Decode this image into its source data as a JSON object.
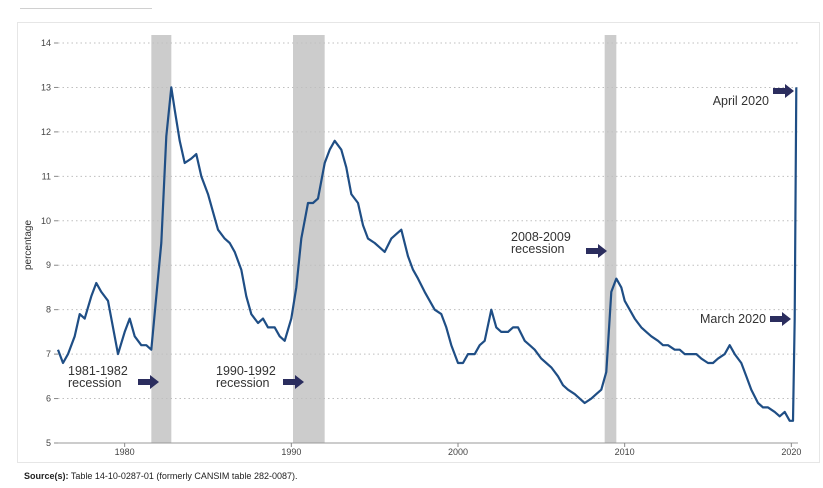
{
  "source": {
    "label": "Source(s):",
    "text": "Table 14-10-0287-01 (formerly CANSIM table 282-0087)."
  },
  "colors": {
    "line": "#1f4e85",
    "recession_band": "#cccccc",
    "arrow": "#2b2d5e",
    "grid": "#bfbfbf"
  },
  "chart_data": {
    "type": "line",
    "title": "",
    "xlabel": "",
    "ylabel": "percentage",
    "xlim": [
      1976,
      2020.4
    ],
    "ylim": [
      5,
      14
    ],
    "x_ticks": [
      1980,
      1990,
      2000,
      2010,
      2020
    ],
    "y_ticks": [
      5,
      6,
      7,
      8,
      9,
      10,
      11,
      12,
      13,
      14
    ],
    "grid": "horizontal dotted",
    "recessions": [
      {
        "start": 1981.6,
        "end": 1982.8
      },
      {
        "start": 1990.1,
        "end": 1992.0
      },
      {
        "start": 2008.8,
        "end": 2009.5
      }
    ],
    "series": [
      {
        "x": [
          1976.0,
          1976.3,
          1976.6,
          1977.0,
          1977.3,
          1977.6,
          1978.0,
          1978.3,
          1978.6,
          1979.0,
          1979.3,
          1979.6,
          1980.0,
          1980.3,
          1980.6,
          1981.0,
          1981.3,
          1981.6,
          1981.9,
          1982.2,
          1982.5,
          1982.8,
          1983.0,
          1983.3,
          1983.6,
          1984.0,
          1984.3,
          1984.6,
          1985.0,
          1985.3,
          1985.6,
          1986.0,
          1986.3,
          1986.6,
          1987.0,
          1987.3,
          1987.6,
          1988.0,
          1988.3,
          1988.6,
          1989.0,
          1989.3,
          1989.6,
          1990.0,
          1990.3,
          1990.6,
          1991.0,
          1991.3,
          1991.6,
          1992.0,
          1992.3,
          1992.6,
          1993.0,
          1993.3,
          1993.6,
          1994.0,
          1994.3,
          1994.6,
          1995.0,
          1995.3,
          1995.6,
          1996.0,
          1996.3,
          1996.6,
          1997.0,
          1997.3,
          1997.6,
          1998.0,
          1998.3,
          1998.6,
          1999.0,
          1999.3,
          1999.6,
          2000.0,
          2000.3,
          2000.6,
          2001.0,
          2001.3,
          2001.6,
          2002.0,
          2002.3,
          2002.6,
          2003.0,
          2003.3,
          2003.6,
          2004.0,
          2004.3,
          2004.6,
          2005.0,
          2005.3,
          2005.6,
          2006.0,
          2006.3,
          2006.6,
          2007.0,
          2007.3,
          2007.6,
          2008.0,
          2008.3,
          2008.6,
          2008.9,
          2009.2,
          2009.5,
          2009.8,
          2010.0,
          2010.3,
          2010.6,
          2011.0,
          2011.3,
          2011.6,
          2012.0,
          2012.3,
          2012.6,
          2013.0,
          2013.3,
          2013.6,
          2014.0,
          2014.3,
          2014.6,
          2015.0,
          2015.3,
          2015.6,
          2016.0,
          2016.3,
          2016.6,
          2017.0,
          2017.3,
          2017.6,
          2018.0,
          2018.3,
          2018.6,
          2019.0,
          2019.3,
          2019.6,
          2019.9,
          2020.1,
          2020.2,
          2020.3
        ],
        "y": [
          7.1,
          6.8,
          7.0,
          7.4,
          7.9,
          7.8,
          8.3,
          8.6,
          8.4,
          8.2,
          7.6,
          7.0,
          7.5,
          7.8,
          7.4,
          7.2,
          7.2,
          7.1,
          8.3,
          9.5,
          11.9,
          13.0,
          12.5,
          11.8,
          11.3,
          11.4,
          11.5,
          11.0,
          10.6,
          10.2,
          9.8,
          9.6,
          9.5,
          9.3,
          8.9,
          8.3,
          7.9,
          7.7,
          7.8,
          7.6,
          7.6,
          7.4,
          7.3,
          7.8,
          8.5,
          9.6,
          10.4,
          10.4,
          10.5,
          11.3,
          11.6,
          11.8,
          11.6,
          11.2,
          10.6,
          10.4,
          9.9,
          9.6,
          9.5,
          9.4,
          9.3,
          9.6,
          9.7,
          9.8,
          9.2,
          8.9,
          8.7,
          8.4,
          8.2,
          8.0,
          7.9,
          7.6,
          7.2,
          6.8,
          6.8,
          7.0,
          7.0,
          7.2,
          7.3,
          8.0,
          7.6,
          7.5,
          7.5,
          7.6,
          7.6,
          7.3,
          7.2,
          7.1,
          6.9,
          6.8,
          6.7,
          6.5,
          6.3,
          6.2,
          6.1,
          6.0,
          5.9,
          6.0,
          6.1,
          6.2,
          6.6,
          8.4,
          8.7,
          8.5,
          8.2,
          8.0,
          7.8,
          7.6,
          7.5,
          7.4,
          7.3,
          7.2,
          7.2,
          7.1,
          7.1,
          7.0,
          7.0,
          7.0,
          6.9,
          6.8,
          6.8,
          6.9,
          7.0,
          7.2,
          7.0,
          6.8,
          6.5,
          6.2,
          5.9,
          5.8,
          5.8,
          5.7,
          5.6,
          5.7,
          5.5,
          5.5,
          7.8,
          13.0
        ]
      }
    ],
    "annotations": [
      {
        "text": "1981-1982",
        "text2": "recession"
      },
      {
        "text": "1990-1992",
        "text2": "recession"
      },
      {
        "text": "2008-2009",
        "text2": "recession"
      },
      {
        "text": "March 2020"
      },
      {
        "text": "April 2020"
      }
    ]
  }
}
